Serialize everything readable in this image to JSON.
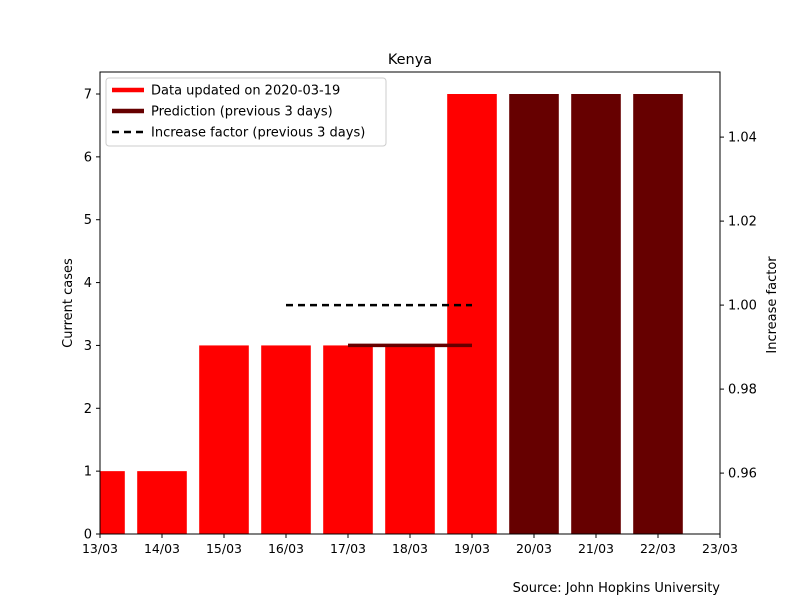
{
  "chart_data": {
    "type": "bar",
    "title": "Kenya",
    "ylabel": "Current cases",
    "ylabel_right": "Increase factor",
    "ylim": [
      0,
      7.35
    ],
    "ylim_right": [
      0.9455,
      1.0555
    ],
    "yticks": [
      0,
      1,
      2,
      3,
      4,
      5,
      6,
      7
    ],
    "yticks_right": [
      0.96,
      0.98,
      1.0,
      1.02,
      1.04
    ],
    "yticks_right_labels": [
      "0.96",
      "0.98",
      "1.00",
      "1.02",
      "1.04"
    ],
    "xticks": [
      "13/03",
      "14/03",
      "15/03",
      "16/03",
      "17/03",
      "18/03",
      "19/03",
      "20/03",
      "21/03",
      "22/03",
      "23/03"
    ],
    "series": [
      {
        "name": "Data updated on 2020-03-19",
        "color": "#ff0000",
        "points": [
          {
            "x": "13/03",
            "y": 1
          },
          {
            "x": "14/03",
            "y": 1
          },
          {
            "x": "15/03",
            "y": 3
          },
          {
            "x": "16/03",
            "y": 3
          },
          {
            "x": "17/03",
            "y": 3
          },
          {
            "x": "18/03",
            "y": 3
          },
          {
            "x": "19/03",
            "y": 7
          }
        ]
      },
      {
        "name": "Prediction (previous 3 days)",
        "color": "#660000",
        "points": [
          {
            "x": "20/03",
            "y": 7
          },
          {
            "x": "21/03",
            "y": 7
          },
          {
            "x": "22/03",
            "y": 7
          }
        ]
      }
    ],
    "prediction_line": {
      "color": "#660000",
      "x_start": "17/03",
      "x_end": "19/03",
      "y": 3
    },
    "increase_factor_line": {
      "name": "Increase factor (previous 3 days)",
      "color": "#000000",
      "style": "dashed",
      "axis": "right",
      "x_start": "16/03",
      "x_end": "19/03",
      "y": 1.0
    },
    "legend_position": "top-left",
    "grid": false
  },
  "source_text": "Source: John Hopkins University"
}
